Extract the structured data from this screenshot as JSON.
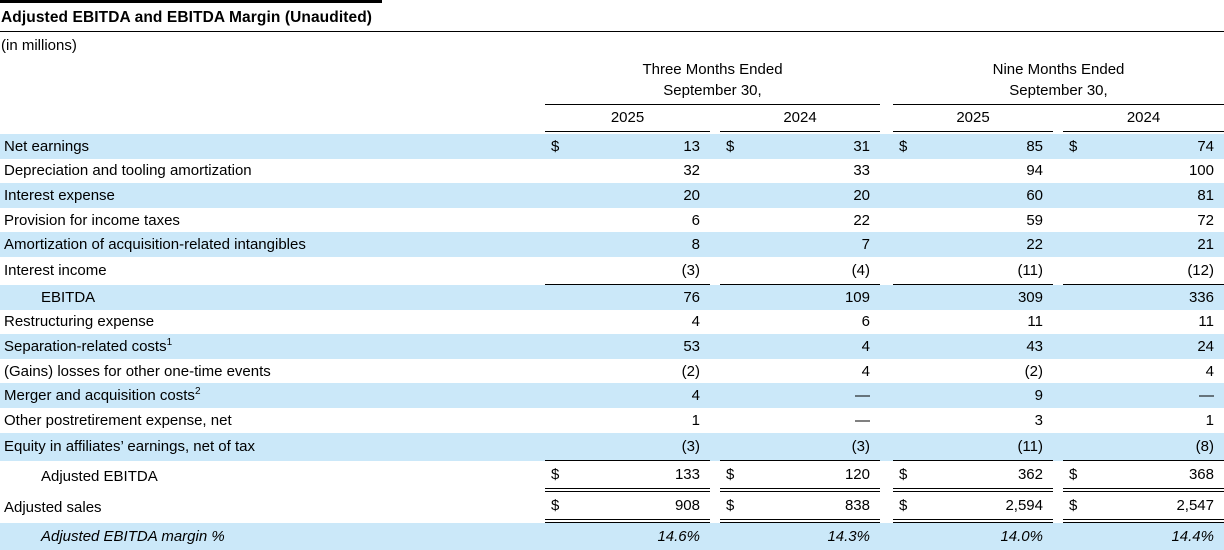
{
  "title": "Adjusted EBITDA and EBITDA Margin (Unaudited)",
  "subtitle": "(in millions)",
  "colors": {
    "row_highlight": "#cbe8f9",
    "text": "#000000",
    "rule": "#000000"
  },
  "header": {
    "groups": [
      {
        "line1": "Three Months Ended",
        "line2": "September 30,",
        "years": [
          "2025",
          "2024"
        ]
      },
      {
        "line1": "Nine Months Ended",
        "line2": "September 30,",
        "years": [
          "2025",
          "2024"
        ]
      }
    ]
  },
  "table": {
    "currency_symbol": "$",
    "rows": [
      {
        "label": "Net earnings",
        "sup": "",
        "indent": false,
        "italic": false,
        "shaded": true,
        "dollar": true,
        "border_bottom": "",
        "values": [
          "13",
          "31",
          "85",
          "74"
        ]
      },
      {
        "label": "Depreciation and tooling amortization",
        "sup": "",
        "indent": false,
        "italic": false,
        "shaded": false,
        "dollar": false,
        "border_bottom": "",
        "values": [
          "32",
          "33",
          "94",
          "100"
        ]
      },
      {
        "label": "Interest expense",
        "sup": "",
        "indent": false,
        "italic": false,
        "shaded": true,
        "dollar": false,
        "border_bottom": "",
        "values": [
          "20",
          "20",
          "60",
          "81"
        ]
      },
      {
        "label": "Provision for income taxes",
        "sup": "",
        "indent": false,
        "italic": false,
        "shaded": false,
        "dollar": false,
        "border_bottom": "",
        "values": [
          "6",
          "22",
          "59",
          "72"
        ]
      },
      {
        "label": "Amortization of acquisition-related intangibles",
        "sup": "",
        "indent": false,
        "italic": false,
        "shaded": true,
        "dollar": false,
        "border_bottom": "",
        "values": [
          "8",
          "7",
          "22",
          "21"
        ]
      },
      {
        "label": "Interest income",
        "sup": "",
        "indent": false,
        "italic": false,
        "shaded": false,
        "dollar": false,
        "border_bottom": "single",
        "values": [
          "(3)",
          "(4)",
          "(11)",
          "(12)"
        ]
      },
      {
        "label": "EBITDA",
        "sup": "",
        "indent": true,
        "italic": false,
        "shaded": true,
        "dollar": false,
        "border_bottom": "",
        "values": [
          "76",
          "109",
          "309",
          "336"
        ]
      },
      {
        "label": "Restructuring expense",
        "sup": "",
        "indent": false,
        "italic": false,
        "shaded": false,
        "dollar": false,
        "border_bottom": "",
        "values": [
          "4",
          "6",
          "11",
          "11"
        ]
      },
      {
        "label": "Separation-related costs",
        "sup": "1",
        "indent": false,
        "italic": false,
        "shaded": true,
        "dollar": false,
        "border_bottom": "",
        "values": [
          "53",
          "4",
          "43",
          "24"
        ]
      },
      {
        "label": "(Gains) losses for other one-time events",
        "sup": "",
        "indent": false,
        "italic": false,
        "shaded": false,
        "dollar": false,
        "border_bottom": "",
        "values": [
          "(2)",
          "4",
          "(2)",
          "4"
        ]
      },
      {
        "label": "Merger and acquisition costs",
        "sup": "2",
        "indent": false,
        "italic": false,
        "shaded": true,
        "dollar": false,
        "border_bottom": "",
        "values": [
          "4",
          "—",
          "9",
          "—"
        ]
      },
      {
        "label": "Other postretirement expense, net",
        "sup": "",
        "indent": false,
        "italic": false,
        "shaded": false,
        "dollar": false,
        "border_bottom": "",
        "values": [
          "1",
          "—",
          "3",
          "1"
        ]
      },
      {
        "label": "Equity in affiliates’ earnings, net of tax",
        "sup": "",
        "indent": false,
        "italic": false,
        "shaded": true,
        "dollar": false,
        "border_bottom": "single",
        "values": [
          "(3)",
          "(3)",
          "(11)",
          "(8)"
        ]
      },
      {
        "label": "Adjusted EBITDA",
        "sup": "",
        "indent": true,
        "italic": false,
        "shaded": false,
        "dollar": true,
        "border_bottom": "double",
        "values": [
          "133",
          "120",
          "362",
          "368"
        ]
      },
      {
        "label": "Adjusted sales",
        "sup": "",
        "indent": false,
        "italic": false,
        "shaded": false,
        "dollar": true,
        "border_bottom": "double",
        "values": [
          "908",
          "838",
          "2,594",
          "2,547"
        ]
      },
      {
        "label": "Adjusted EBITDA margin %",
        "sup": "",
        "indent": true,
        "italic": true,
        "shaded": true,
        "dollar": false,
        "border_bottom": "",
        "values": [
          "14.6%",
          "14.3%",
          "14.0%",
          "14.4%"
        ]
      }
    ]
  }
}
